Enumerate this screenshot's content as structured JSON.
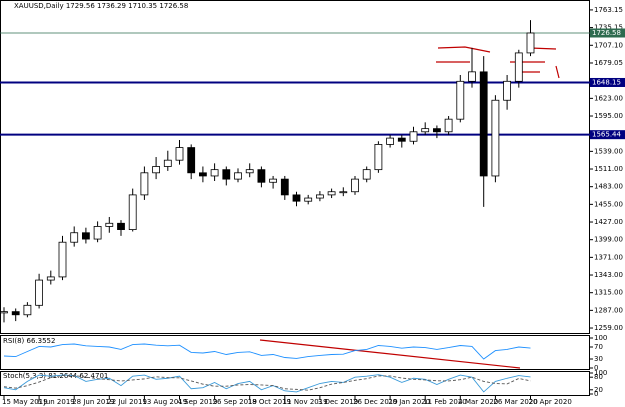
{
  "chart_data": [
    {
      "type": "candlestick",
      "title": "XAUUSD,Daily  1729.56 1736.29 1710.35 1726.58",
      "categories": [
        "15 May 2019",
        null,
        null,
        "6 Jun 2019",
        null,
        null,
        "28 Jun 2019",
        null,
        null,
        "22 Jul 2019",
        null,
        null,
        "13 Aug 2019",
        null,
        null,
        "4 Sep 2019",
        null,
        null,
        "26 Sep 2019",
        null,
        null,
        "18 Oct 2019",
        null,
        null,
        "11 Nov 2019",
        null,
        null,
        "3 Dec 2019",
        null,
        null,
        "26 Dec 2019",
        null,
        null,
        "20 Jan 2020",
        null,
        null,
        "11 Feb 2020",
        null,
        null,
        "4 Mar 2020",
        null,
        null,
        "26 Mar 2020",
        null,
        null,
        "20 Apr 2020"
      ],
      "open": [
        1283,
        1285,
        1280,
        1295,
        1335,
        1340,
        1395,
        1410,
        1400,
        1420,
        1425,
        1415,
        1470,
        1505,
        1515,
        1525,
        1545,
        1505,
        1500,
        1510,
        1495,
        1505,
        1510,
        1490,
        1495,
        1470,
        1460,
        1465,
        1470,
        1475,
        1475,
        1495,
        1510,
        1550,
        1560,
        1555,
        1570,
        1575,
        1570,
        1590,
        1650,
        1665,
        1500,
        1620,
        1650,
        1695
      ],
      "high": [
        1292,
        1290,
        1300,
        1345,
        1350,
        1405,
        1420,
        1418,
        1428,
        1435,
        1430,
        1480,
        1515,
        1530,
        1540,
        1557,
        1550,
        1515,
        1520,
        1515,
        1512,
        1520,
        1515,
        1500,
        1500,
        1475,
        1470,
        1476,
        1480,
        1482,
        1500,
        1515,
        1555,
        1565,
        1565,
        1578,
        1585,
        1580,
        1595,
        1660,
        1703,
        1690,
        1628,
        1660,
        1700,
        1747
      ],
      "low": [
        1268,
        1270,
        1276,
        1290,
        1328,
        1335,
        1388,
        1393,
        1395,
        1410,
        1405,
        1412,
        1462,
        1495,
        1508,
        1518,
        1495,
        1490,
        1492,
        1485,
        1490,
        1498,
        1482,
        1480,
        1462,
        1452,
        1455,
        1460,
        1465,
        1468,
        1470,
        1490,
        1505,
        1545,
        1545,
        1550,
        1565,
        1560,
        1565,
        1585,
        1640,
        1451,
        1490,
        1605,
        1640,
        1690
      ],
      "close": [
        1285,
        1280,
        1295,
        1335,
        1340,
        1395,
        1410,
        1400,
        1420,
        1425,
        1415,
        1470,
        1505,
        1515,
        1525,
        1545,
        1505,
        1500,
        1510,
        1495,
        1505,
        1510,
        1490,
        1495,
        1470,
        1460,
        1465,
        1470,
        1475,
        1475,
        1495,
        1510,
        1550,
        1560,
        1555,
        1570,
        1575,
        1570,
        1590,
        1650,
        1665,
        1500,
        1620,
        1650,
        1695,
        1726.58
      ],
      "color": "#000000",
      "ylim": [
        1252.7,
        1775.7
      ],
      "yticks": [
        {
          "value": 1259,
          "label": "1259.00"
        },
        {
          "value": 1287,
          "label": "1287.00"
        },
        {
          "value": 1315,
          "label": "1315.00"
        },
        {
          "value": 1343,
          "label": "1343.00"
        },
        {
          "value": 1371,
          "label": "1371.00"
        },
        {
          "value": 1399,
          "label": "1399.00"
        },
        {
          "value": 1427,
          "label": "1427.00"
        },
        {
          "value": 1455,
          "label": "1455.00"
        },
        {
          "value": 1483,
          "label": "1483.00"
        },
        {
          "value": 1511,
          "label": "1511.00"
        },
        {
          "value": 1539,
          "label": "1539.00"
        },
        {
          "value": 1595,
          "label": "1595.00"
        },
        {
          "value": 1623,
          "label": "1623.00"
        },
        {
          "value": 1679.05,
          "label": "1679.05"
        },
        {
          "value": 1707.1,
          "label": "1707.10"
        },
        {
          "value": 1735.15,
          "label": "1735.15"
        },
        {
          "value": 1763.15,
          "label": "1763.15"
        }
      ],
      "levels": [
        {
          "value": 1648.15,
          "label": "1648.15",
          "color": "#000080"
        },
        {
          "value": 1565.44,
          "label": "1565.44",
          "color": "#000080"
        },
        {
          "value": 1726.58,
          "label": "1726.58",
          "color": "#2e6b4f"
        }
      ]
    },
    {
      "type": "line",
      "title": "RSI(8) 66.3552",
      "ylim": [
        0,
        100
      ],
      "yticks": [
        0,
        30,
        70,
        100
      ],
      "series": [
        {
          "color": "#1e90ff",
          "values": [
            40,
            38,
            55,
            72,
            70,
            78,
            80,
            74,
            72,
            70,
            62,
            78,
            80,
            76,
            74,
            76,
            52,
            50,
            55,
            45,
            52,
            54,
            42,
            45,
            35,
            32,
            38,
            42,
            45,
            46,
            58,
            62,
            75,
            72,
            66,
            70,
            68,
            62,
            68,
            75,
            72,
            30,
            58,
            62,
            70,
            66.36
          ]
        }
      ]
    },
    {
      "type": "line",
      "title": "Stoch(5,3,3) 81.2644 62.4701",
      "ylim": [
        0,
        100
      ],
      "yticks": [
        0,
        20,
        80,
        100
      ],
      "series": [
        {
          "color": "#3a9ad9",
          "values": [
            30,
            20,
            60,
            90,
            85,
            90,
            88,
            60,
            70,
            75,
            40,
            85,
            90,
            70,
            75,
            85,
            25,
            30,
            55,
            25,
            50,
            60,
            20,
            40,
            15,
            10,
            30,
            50,
            60,
            55,
            80,
            85,
            92,
            80,
            55,
            75,
            70,
            45,
            70,
            90,
            80,
            10,
            60,
            75,
            88,
            81.26
          ]
        },
        {
          "color": "#555555",
          "values": [
            35,
            28,
            40,
            57,
            78,
            88,
            88,
            80,
            73,
            68,
            62,
            67,
            72,
            82,
            78,
            77,
            62,
            47,
            37,
            37,
            43,
            45,
            43,
            40,
            25,
            22,
            18,
            30,
            47,
            55,
            65,
            73,
            86,
            86,
            76,
            70,
            67,
            63,
            62,
            68,
            80,
            60,
            50,
            48,
            74,
            62.47
          ]
        }
      ]
    }
  ]
}
